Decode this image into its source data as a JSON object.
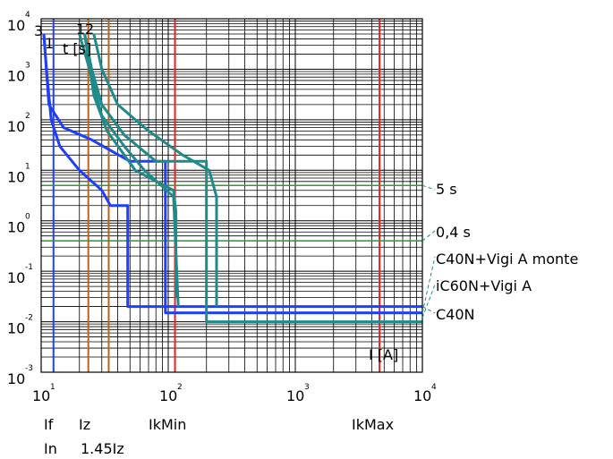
{
  "chart_data": {
    "type": "line",
    "x_scale": "log",
    "y_scale": "log",
    "xlim": [
      10,
      10000
    ],
    "ylim": [
      0.001,
      10000
    ],
    "x_ticks": [
      {
        "base": "10",
        "exp": "1"
      },
      {
        "base": "10",
        "exp": "2"
      },
      {
        "base": "10",
        "exp": "3"
      },
      {
        "base": "10",
        "exp": "4"
      }
    ],
    "y_ticks": [
      {
        "base": "10",
        "exp": "-3"
      },
      {
        "base": "10",
        "exp": "-2"
      },
      {
        "base": "10",
        "exp": "-1"
      },
      {
        "base": "10",
        "exp": "0"
      },
      {
        "base": "10",
        "exp": "1"
      },
      {
        "base": "10",
        "exp": "2"
      },
      {
        "base": "10",
        "exp": "3"
      },
      {
        "base": "10",
        "exp": "4"
      }
    ],
    "xlabel": "I [A]",
    "ylabel": "t [s]",
    "curve_numbers": [
      "3",
      "1",
      "1",
      "2"
    ],
    "vertical_markers": [
      {
        "label": "If",
        "x": 12.5,
        "color": "#1f3fff"
      },
      {
        "label": "In",
        "x": 12.5,
        "color": "#1f3fff"
      },
      {
        "label": "Iz",
        "x": 23.5,
        "color": "#b5651d"
      },
      {
        "label": "1.45Iz",
        "x": 34,
        "color": "#b5651d"
      },
      {
        "label": "IkMin",
        "x": 113,
        "color": "#e82020"
      },
      {
        "label": "IkMax",
        "x": 4600,
        "color": "#e82020"
      }
    ],
    "x_marker_row1": [
      "If",
      "Iz",
      "IkMin",
      "IkMax"
    ],
    "x_marker_row2": [
      "In",
      "1.45Iz"
    ],
    "horizontal_markers": [
      {
        "label": "5 s",
        "y": 5,
        "color": "#2e9e2e"
      },
      {
        "label": "0,4 s",
        "y": 0.4,
        "color": "#2e9e2e"
      }
    ],
    "series": [
      {
        "name": "C40N",
        "color": "#1f3fff",
        "points": [
          [
            10.5,
            5000
          ],
          [
            11,
            1000
          ],
          [
            12,
            100
          ],
          [
            14,
            30
          ],
          [
            20,
            10
          ],
          [
            30,
            4
          ],
          [
            35,
            2
          ],
          [
            48,
            2
          ],
          [
            48,
            0.02
          ],
          [
            10000,
            0.02
          ]
        ]
      },
      {
        "name": "C40N+Vigi A monte",
        "color": "#1f3fff",
        "points": [
          [
            10.5,
            5000
          ],
          [
            11.5,
            200
          ],
          [
            15,
            70
          ],
          [
            25,
            40
          ],
          [
            50,
            15
          ],
          [
            95,
            15
          ],
          [
            95,
            0.015
          ],
          [
            10000,
            0.015
          ]
        ]
      },
      {
        "name": "iC60N+Vigi A",
        "color": "#1f8a8a",
        "points": [
          [
            26,
            5000
          ],
          [
            30,
            1000
          ],
          [
            40,
            200
          ],
          [
            70,
            60
          ],
          [
            130,
            20
          ],
          [
            210,
            10
          ],
          [
            240,
            3
          ],
          [
            240,
            0.02
          ]
        ]
      },
      {
        "name": "",
        "color": "#1f8a8a",
        "points": [
          [
            22,
            5000
          ],
          [
            25,
            1000
          ],
          [
            30,
            200
          ],
          [
            45,
            50
          ],
          [
            80,
            15
          ],
          [
            200,
            15
          ],
          [
            200,
            0.01
          ],
          [
            10000,
            0.01
          ]
        ]
      },
      {
        "name": "",
        "color": "#1f8a8a",
        "points": [
          [
            20,
            5000
          ],
          [
            24,
            1000
          ],
          [
            30,
            120
          ],
          [
            45,
            30
          ],
          [
            65,
            10
          ],
          [
            110,
            3
          ],
          [
            120,
            0.02
          ]
        ]
      },
      {
        "name": "",
        "color": "#1f8a8a",
        "points": [
          [
            22,
            5000
          ],
          [
            26,
            300
          ],
          [
            33,
            60
          ],
          [
            55,
            10
          ],
          [
            110,
            4
          ],
          [
            115,
            1.5
          ],
          [
            115,
            0.03
          ]
        ]
      }
    ],
    "annotations": [
      "5 s",
      "0,4 s",
      "C40N+Vigi A monte",
      "iC60N+Vigi A",
      "C40N"
    ],
    "grid": true
  }
}
